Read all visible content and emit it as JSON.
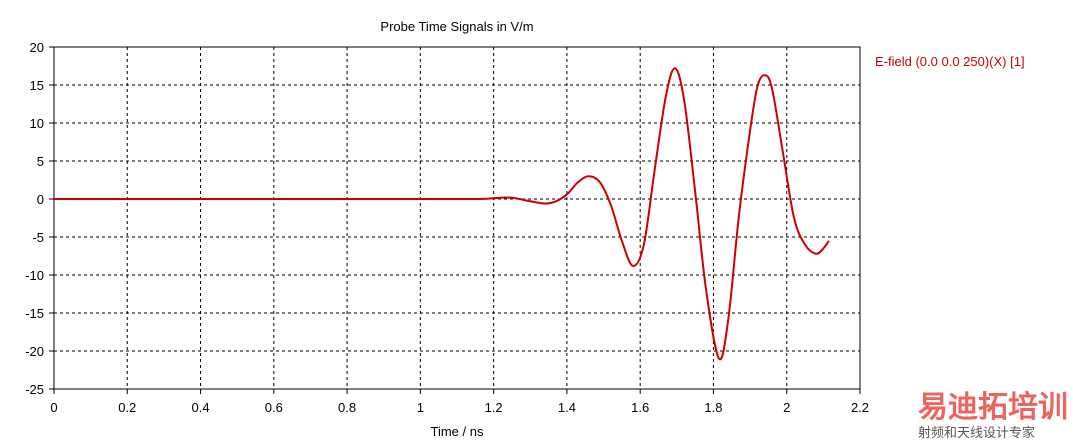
{
  "chart_data": {
    "type": "line",
    "title": "Probe Time Signals in V/m",
    "xlabel": "Time / ns",
    "ylabel": "",
    "xlim": [
      0,
      2.2
    ],
    "ylim": [
      -25,
      20
    ],
    "x_ticks": [
      "0",
      "0.2",
      "0.4",
      "0.6",
      "0.8",
      "1",
      "1.2",
      "1.4",
      "1.6",
      "1.8",
      "2",
      "2.2"
    ],
    "y_ticks": [
      "20",
      "15",
      "10",
      "5",
      "0",
      "-5",
      "-10",
      "-15",
      "-20",
      "-25"
    ],
    "grid": true,
    "legend_position": "right",
    "series": [
      {
        "name": "E-field (0.0 0.0 250)(X) [1]",
        "color": "#cc0000",
        "points": [
          [
            0,
            0
          ],
          [
            1.0,
            0
          ],
          [
            1.15,
            0
          ],
          [
            1.2,
            0.1
          ],
          [
            1.23,
            0.2
          ],
          [
            1.26,
            0.1
          ],
          [
            1.3,
            -0.3
          ],
          [
            1.34,
            -0.6
          ],
          [
            1.37,
            -0.3
          ],
          [
            1.4,
            0.6
          ],
          [
            1.43,
            2.2
          ],
          [
            1.46,
            3.0
          ],
          [
            1.49,
            2.2
          ],
          [
            1.52,
            -0.8
          ],
          [
            1.55,
            -5.5
          ],
          [
            1.58,
            -8.8
          ],
          [
            1.61,
            -6.0
          ],
          [
            1.64,
            4.0
          ],
          [
            1.67,
            13.5
          ],
          [
            1.695,
            17.2
          ],
          [
            1.72,
            13.0
          ],
          [
            1.75,
            1.0
          ],
          [
            1.78,
            -12.0
          ],
          [
            1.815,
            -21.0
          ],
          [
            1.84,
            -16.0
          ],
          [
            1.87,
            -2.0
          ],
          [
            1.9,
            9.0
          ],
          [
            1.92,
            14.8
          ],
          [
            1.94,
            16.3
          ],
          [
            1.96,
            14.5
          ],
          [
            1.99,
            6.0
          ],
          [
            2.02,
            -2.5
          ],
          [
            2.05,
            -6.0
          ],
          [
            2.08,
            -7.2
          ],
          [
            2.1,
            -6.5
          ],
          [
            2.115,
            -5.5
          ]
        ]
      }
    ]
  },
  "watermark": {
    "main_text": "易迪拓培训",
    "sub_text": "射频和天线设计专家",
    "color": "#e7302a"
  }
}
